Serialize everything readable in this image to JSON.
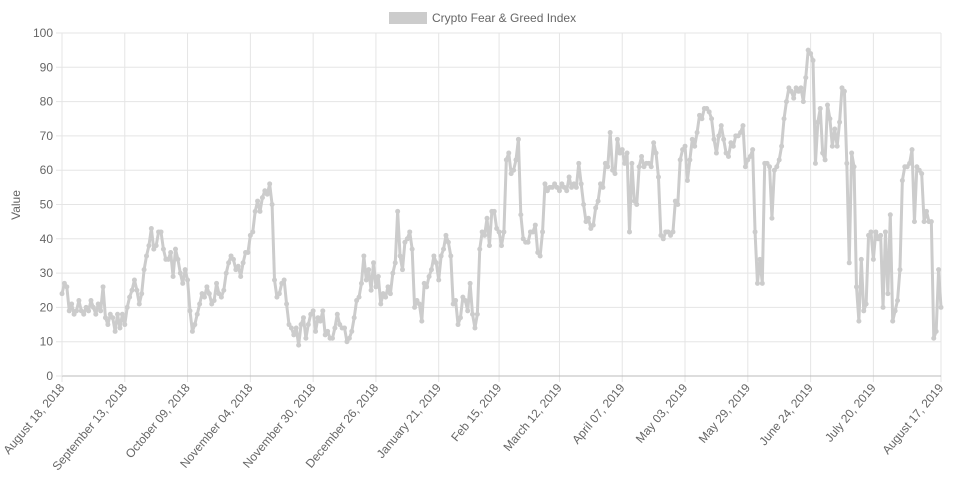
{
  "chart_data": {
    "type": "line",
    "legend": "top",
    "grid": true,
    "y_label": "Value",
    "ylim": [
      0,
      100
    ],
    "yticks": [
      0,
      10,
      20,
      30,
      40,
      50,
      60,
      70,
      80,
      90,
      100
    ],
    "categories": [
      "August 18, 2018",
      null,
      null,
      null,
      null,
      null,
      null,
      null,
      null,
      null,
      null,
      null,
      null,
      null,
      null,
      null,
      null,
      null,
      null,
      null,
      null,
      null,
      null,
      null,
      null,
      null,
      "September 13, 2018",
      null,
      null,
      null,
      null,
      null,
      null,
      null,
      null,
      null,
      null,
      null,
      null,
      null,
      null,
      null,
      null,
      null,
      null,
      null,
      null,
      null,
      null,
      null,
      null,
      null,
      "October 09, 2018",
      null,
      null,
      null,
      null,
      null,
      null,
      null,
      null,
      null,
      null,
      null,
      null,
      null,
      null,
      null,
      null,
      null,
      null,
      null,
      null,
      null,
      null,
      null,
      null,
      null,
      "November 04, 2018",
      null,
      null,
      null,
      null,
      null,
      null,
      null,
      null,
      null,
      null,
      null,
      null,
      null,
      null,
      null,
      null,
      null,
      null,
      null,
      null,
      null,
      null,
      null,
      null,
      null,
      "November 30, 2018",
      null,
      null,
      null,
      null,
      null,
      null,
      null,
      null,
      null,
      null,
      null,
      null,
      null,
      null,
      null,
      null,
      null,
      null,
      null,
      null,
      null,
      null,
      null,
      null,
      null,
      "December 26, 2018",
      null,
      null,
      null,
      null,
      null,
      null,
      null,
      null,
      null,
      null,
      null,
      null,
      null,
      null,
      null,
      null,
      null,
      null,
      null,
      null,
      null,
      null,
      null,
      null,
      null,
      "January 21, 2019",
      null,
      null,
      null,
      null,
      null,
      null,
      null,
      null,
      null,
      null,
      null,
      null,
      null,
      null,
      null,
      null,
      null,
      null,
      null,
      null,
      null,
      null,
      null,
      null,
      "Feb 15, 2019",
      null,
      null,
      null,
      null,
      null,
      null,
      null,
      null,
      null,
      null,
      null,
      null,
      null,
      null,
      null,
      null,
      null,
      null,
      null,
      null,
      null,
      null,
      null,
      null,
      "March 12, 2019",
      null,
      null,
      null,
      null,
      null,
      null,
      null,
      null,
      null,
      null,
      null,
      null,
      null,
      null,
      null,
      null,
      null,
      null,
      null,
      null,
      null,
      null,
      null,
      null,
      null,
      "April 07, 2019",
      null,
      null,
      null,
      null,
      null,
      null,
      null,
      null,
      null,
      null,
      null,
      null,
      null,
      null,
      null,
      null,
      null,
      null,
      null,
      null,
      null,
      null,
      null,
      null,
      null,
      "May 03, 2019",
      null,
      null,
      null,
      null,
      null,
      null,
      null,
      null,
      null,
      null,
      null,
      null,
      null,
      null,
      null,
      null,
      null,
      null,
      null,
      null,
      null,
      null,
      null,
      null,
      null,
      "May 29, 2019",
      null,
      null,
      null,
      null,
      null,
      null,
      null,
      null,
      null,
      null,
      null,
      null,
      null,
      null,
      null,
      null,
      null,
      null,
      null,
      null,
      null,
      null,
      null,
      null,
      null,
      "June 24, 2019",
      null,
      null,
      null,
      null,
      null,
      null,
      null,
      null,
      null,
      null,
      null,
      null,
      null,
      null,
      null,
      null,
      null,
      null,
      null,
      null,
      null,
      null,
      null,
      null,
      null,
      "July 20, 2019",
      null,
      null,
      null,
      null,
      null,
      null,
      null,
      null,
      null,
      null,
      null,
      null,
      null,
      null,
      null,
      null,
      null,
      null,
      null,
      null,
      null,
      null,
      null,
      null,
      null,
      null,
      null,
      "August 17, 2019"
    ],
    "series": [
      {
        "name": "Crypto Fear & Greed Index",
        "color": "#cccccc",
        "values": [
          24,
          27,
          26,
          19,
          21,
          18,
          19,
          22,
          19,
          18,
          20,
          19,
          22,
          20,
          18,
          21,
          19,
          26,
          17,
          15,
          18,
          17,
          13,
          18,
          14,
          18,
          15,
          20,
          23,
          25,
          28,
          25,
          21,
          24,
          31,
          35,
          38,
          43,
          37,
          38,
          42,
          42,
          37,
          34,
          34,
          36,
          29,
          37,
          34,
          30,
          27,
          31,
          28,
          19,
          13,
          15,
          18,
          21,
          24,
          23,
          26,
          24,
          21,
          22,
          27,
          24,
          23,
          25,
          30,
          33,
          35,
          34,
          31,
          32,
          29,
          33,
          36,
          36,
          41,
          42,
          48,
          51,
          48,
          52,
          54,
          53,
          56,
          50,
          28,
          23,
          24,
          27,
          28,
          21,
          15,
          14,
          12,
          14,
          9,
          15,
          17,
          11,
          15,
          18,
          19,
          13,
          17,
          16,
          19,
          12,
          13,
          11,
          11,
          14,
          18,
          15,
          14,
          14,
          10,
          11,
          13,
          17,
          22,
          23,
          27,
          35,
          28,
          31,
          25,
          33,
          26,
          29,
          21,
          24,
          23,
          26,
          24,
          30,
          33,
          48,
          35,
          31,
          39,
          40,
          42,
          37,
          20,
          22,
          21,
          16,
          27,
          26,
          29,
          31,
          35,
          33,
          28,
          35,
          37,
          41,
          39,
          35,
          21,
          22,
          15,
          17,
          23,
          22,
          19,
          27,
          18,
          14,
          18,
          37,
          42,
          41,
          46,
          38,
          48,
          48,
          43,
          42,
          38,
          42,
          63,
          65,
          59,
          60,
          63,
          69,
          47,
          40,
          39,
          39,
          42,
          42,
          44,
          36,
          35,
          42,
          56,
          54,
          55,
          55,
          56,
          55,
          54,
          56,
          55,
          54,
          58,
          55,
          56,
          55,
          62,
          56,
          50,
          45,
          46,
          43,
          44,
          49,
          51,
          56,
          55,
          62,
          61,
          71,
          60,
          59,
          69,
          65,
          66,
          62,
          65,
          42,
          62,
          51,
          50,
          61,
          64,
          61,
          62,
          62,
          61,
          68,
          65,
          58,
          41,
          40,
          42,
          42,
          41,
          42,
          51,
          50,
          63,
          66,
          67,
          57,
          63,
          69,
          67,
          71,
          76,
          75,
          78,
          78,
          77,
          75,
          69,
          65,
          70,
          73,
          69,
          65,
          64,
          68,
          67,
          70,
          70,
          71,
          73,
          61,
          63,
          64,
          66,
          42,
          27,
          34,
          27,
          62,
          62,
          61,
          46,
          60,
          61,
          63,
          67,
          75,
          80,
          84,
          83,
          81,
          84,
          83,
          84,
          80,
          87,
          95,
          94,
          92,
          62,
          74,
          78,
          65,
          63,
          79,
          75,
          67,
          72,
          67,
          74,
          84,
          83,
          62,
          33,
          65,
          61,
          26,
          16,
          34,
          19,
          21,
          41,
          42,
          34,
          42,
          40,
          41,
          20,
          42,
          24,
          47,
          16,
          19,
          22,
          31,
          57,
          61,
          61,
          62,
          66,
          45,
          61,
          60,
          59,
          45,
          48,
          45,
          45,
          11,
          13,
          31,
          20
        ]
      }
    ]
  }
}
